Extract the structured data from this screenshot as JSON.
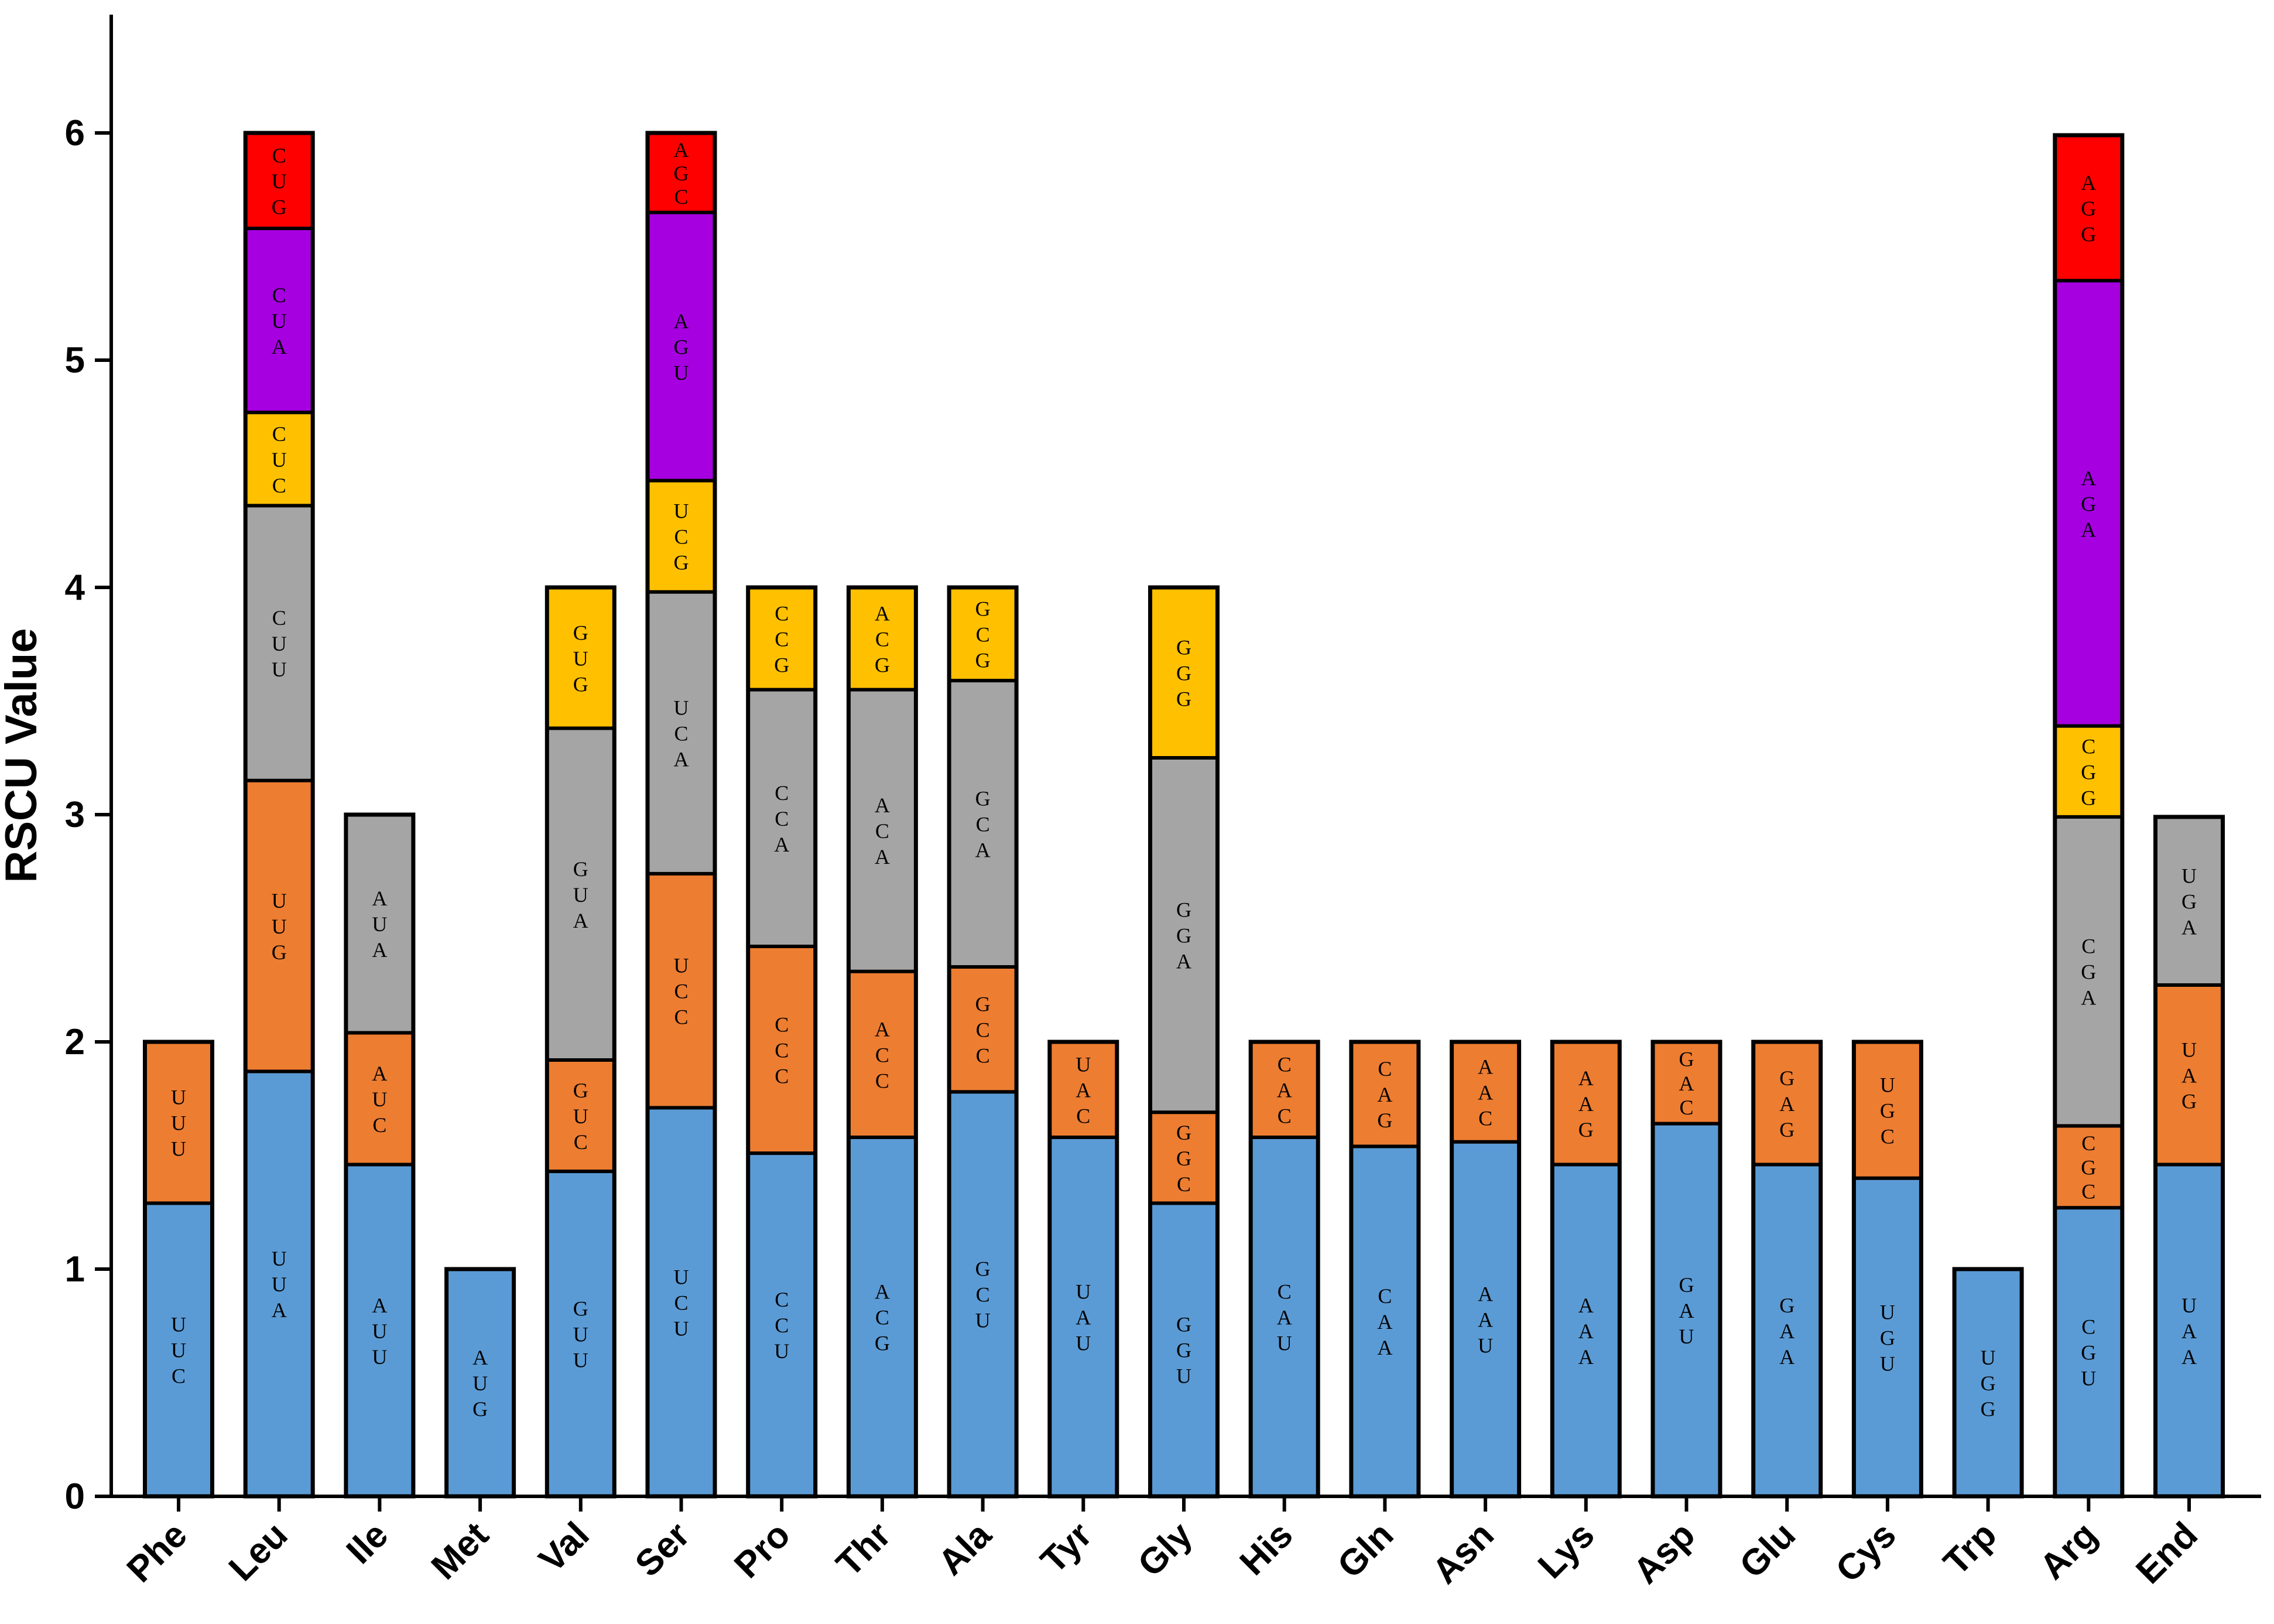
{
  "chart_data": {
    "type": "stacked-bar",
    "title": "",
    "xlabel": "",
    "ylabel": "RSCU Value",
    "ylim": [
      0,
      6.5
    ],
    "yticks": [
      0,
      1,
      2,
      3,
      4,
      5,
      6
    ],
    "tick_labels": [
      "0",
      "1",
      "2",
      "3",
      "4",
      "5",
      "6"
    ],
    "legend": "none",
    "segment_colors": [
      "#5B9BD5",
      "#ED7D31",
      "#A5A5A5",
      "#FFC000",
      "#A600E0",
      "#FF0000"
    ],
    "categories": [
      "Phe",
      "Leu",
      "Ile",
      "Met",
      "Val",
      "Ser",
      "Pro",
      "Thr",
      "Ala",
      "Tyr",
      "Gly",
      "His",
      "Gln",
      "Asn",
      "Lys",
      "Asp",
      "Glu",
      "Cys",
      "Trp",
      "Arg",
      "End"
    ],
    "stacks": [
      {
        "category": "Phe",
        "segments": [
          {
            "codon": "UUC",
            "value": 1.29
          },
          {
            "codon": "UUU",
            "value": 0.71
          }
        ]
      },
      {
        "category": "Leu",
        "segments": [
          {
            "codon": "UUA",
            "value": 1.87
          },
          {
            "codon": "UUG",
            "value": 1.28
          },
          {
            "codon": "CUU",
            "value": 1.21
          },
          {
            "codon": "CUC",
            "value": 0.41
          },
          {
            "codon": "CUA",
            "value": 0.81
          },
          {
            "codon": "CUG",
            "value": 0.42
          }
        ]
      },
      {
        "category": "Ile",
        "segments": [
          {
            "codon": "AUU",
            "value": 1.46
          },
          {
            "codon": "AUC",
            "value": 0.58
          },
          {
            "codon": "AUA",
            "value": 0.96
          }
        ]
      },
      {
        "category": "Met",
        "segments": [
          {
            "codon": "AUG",
            "value": 1.0
          }
        ]
      },
      {
        "category": "Val",
        "segments": [
          {
            "codon": "GUU",
            "value": 1.43
          },
          {
            "codon": "GUC",
            "value": 0.49
          },
          {
            "codon": "GUA",
            "value": 1.46
          },
          {
            "codon": "GUG",
            "value": 0.62
          }
        ]
      },
      {
        "category": "Ser",
        "segments": [
          {
            "codon": "UCU",
            "value": 1.71
          },
          {
            "codon": "UCC",
            "value": 1.03
          },
          {
            "codon": "UCA",
            "value": 1.24
          },
          {
            "codon": "UCG",
            "value": 0.49
          },
          {
            "codon": "AGU",
            "value": 1.18
          },
          {
            "codon": "AGC",
            "value": 0.35
          }
        ]
      },
      {
        "category": "Pro",
        "segments": [
          {
            "codon": "CCU",
            "value": 1.51
          },
          {
            "codon": "CCC",
            "value": 0.91
          },
          {
            "codon": "CCA",
            "value": 1.13
          },
          {
            "codon": "CCG",
            "value": 0.45
          }
        ]
      },
      {
        "category": "Thr",
        "segments": [
          {
            "codon": "ACG",
            "value": 1.58
          },
          {
            "codon": "ACC",
            "value": 0.73
          },
          {
            "codon": "ACA",
            "value": 1.24
          },
          {
            "codon": "ACG",
            "value": 0.45
          }
        ]
      },
      {
        "category": "Ala",
        "segments": [
          {
            "codon": "GCU",
            "value": 1.78
          },
          {
            "codon": "GCC",
            "value": 0.55
          },
          {
            "codon": "GCA",
            "value": 1.26
          },
          {
            "codon": "GCG",
            "value": 0.41
          }
        ]
      },
      {
        "category": "Tyr",
        "segments": [
          {
            "codon": "UAU",
            "value": 1.58
          },
          {
            "codon": "UAC",
            "value": 0.42
          }
        ]
      },
      {
        "category": "Gly",
        "segments": [
          {
            "codon": "GGU",
            "value": 1.29
          },
          {
            "codon": "GGC",
            "value": 0.4
          },
          {
            "codon": "GGA",
            "value": 1.56
          },
          {
            "codon": "GGG",
            "value": 0.75
          }
        ]
      },
      {
        "category": "His",
        "segments": [
          {
            "codon": "CAU",
            "value": 1.58
          },
          {
            "codon": "CAC",
            "value": 0.42
          }
        ]
      },
      {
        "category": "Gln",
        "segments": [
          {
            "codon": "CAA",
            "value": 1.54
          },
          {
            "codon": "CAG",
            "value": 0.46
          }
        ]
      },
      {
        "category": "Asn",
        "segments": [
          {
            "codon": "AAU",
            "value": 1.56
          },
          {
            "codon": "AAC",
            "value": 0.44
          }
        ]
      },
      {
        "category": "Lys",
        "segments": [
          {
            "codon": "AAA",
            "value": 1.46
          },
          {
            "codon": "AAG",
            "value": 0.54
          }
        ]
      },
      {
        "category": "Asp",
        "segments": [
          {
            "codon": "GAU",
            "value": 1.64
          },
          {
            "codon": "GAC",
            "value": 0.36
          }
        ]
      },
      {
        "category": "Glu",
        "segments": [
          {
            "codon": "GAA",
            "value": 1.46
          },
          {
            "codon": "GAG",
            "value": 0.54
          }
        ]
      },
      {
        "category": "Cys",
        "segments": [
          {
            "codon": "UGU",
            "value": 1.4
          },
          {
            "codon": "UGC",
            "value": 0.6
          }
        ]
      },
      {
        "category": "Trp",
        "segments": [
          {
            "codon": "UGG",
            "value": 1.0
          }
        ]
      },
      {
        "category": "Arg",
        "segments": [
          {
            "codon": "CGU",
            "value": 1.27
          },
          {
            "codon": "CGC",
            "value": 0.36
          },
          {
            "codon": "CGA",
            "value": 1.36
          },
          {
            "codon": "CGG",
            "value": 0.4
          },
          {
            "codon": "AGA",
            "value": 1.96
          },
          {
            "codon": "AGG",
            "value": 0.64
          }
        ]
      },
      {
        "category": "End",
        "segments": [
          {
            "codon": "UAA",
            "value": 1.46
          },
          {
            "codon": "UAG",
            "value": 0.79
          },
          {
            "codon": "UGA",
            "value": 0.74
          }
        ]
      }
    ]
  }
}
